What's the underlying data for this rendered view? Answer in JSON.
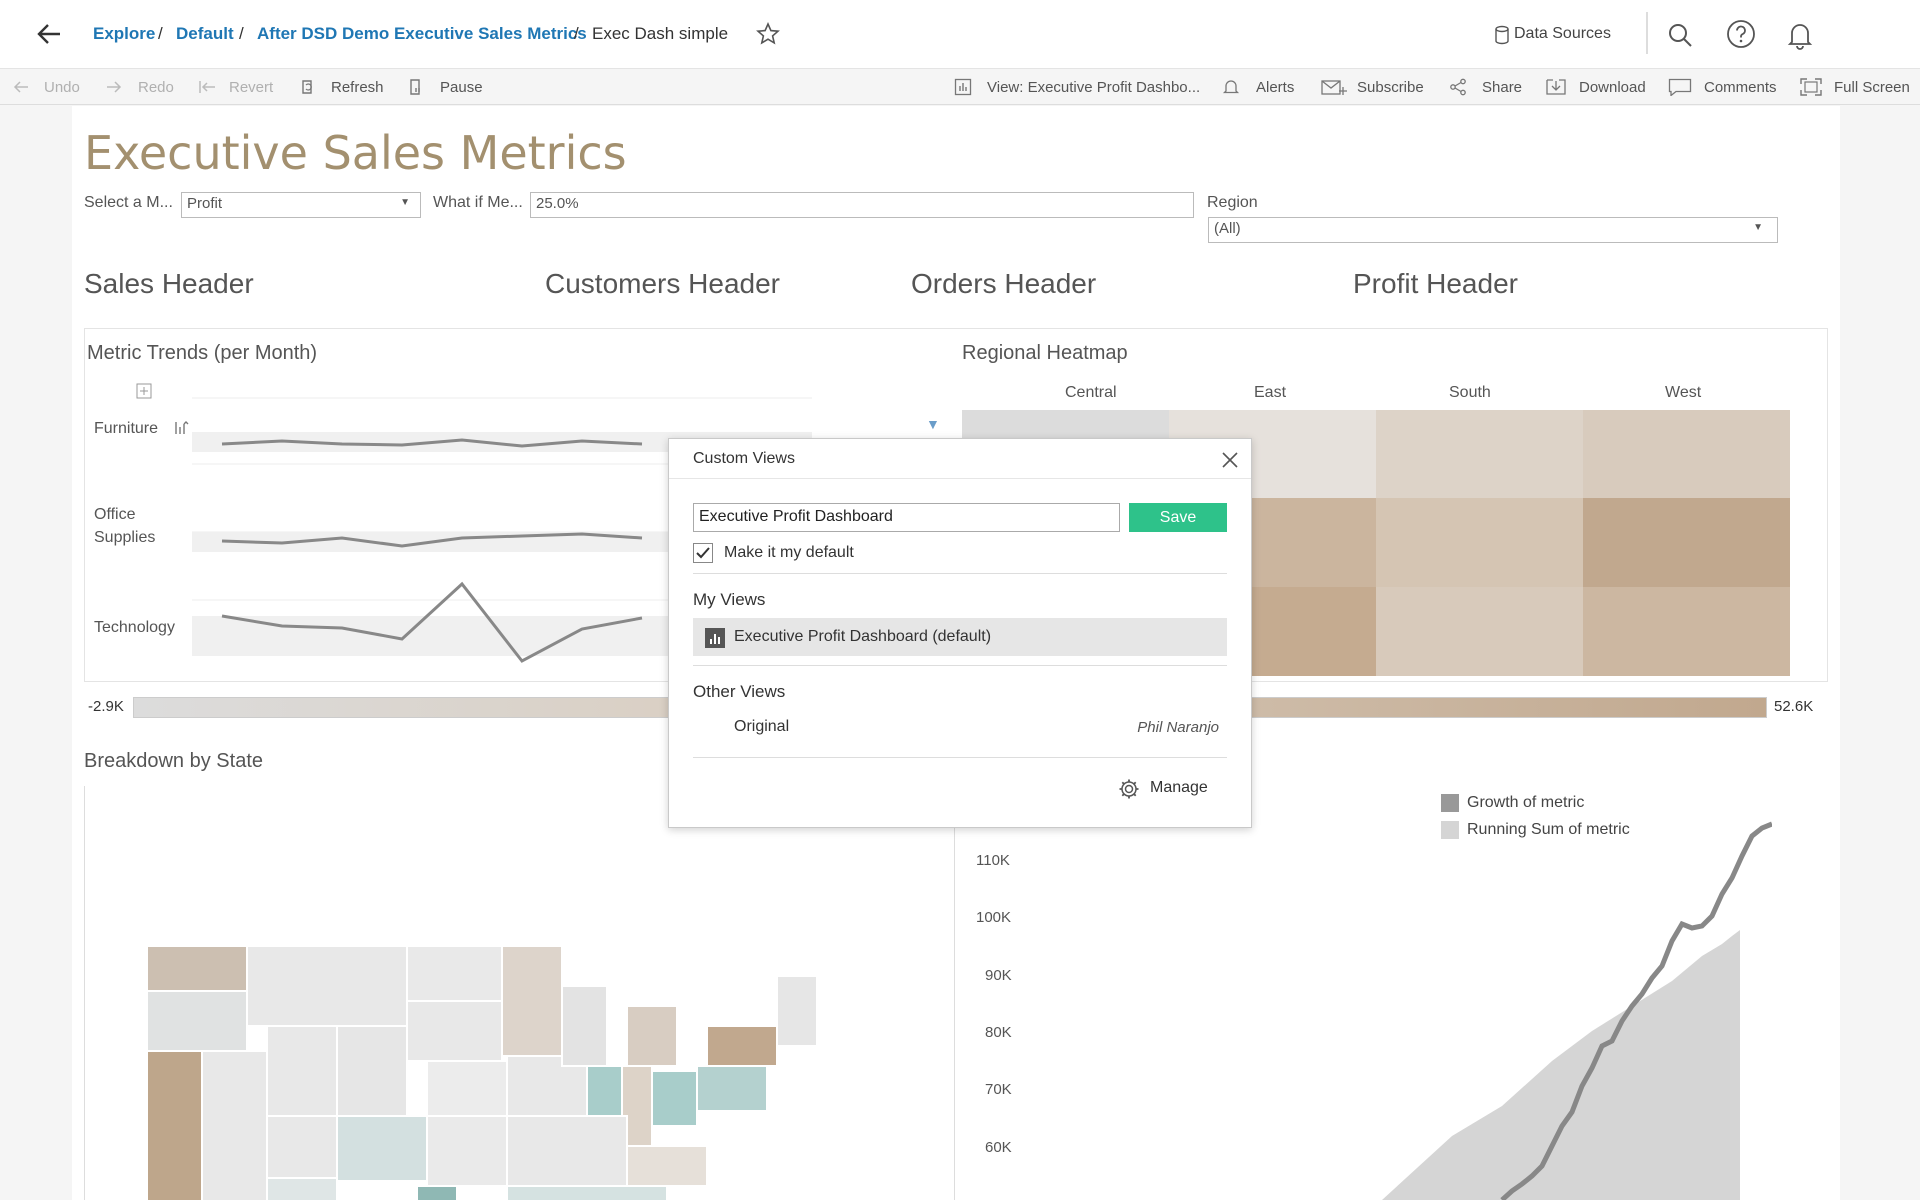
{
  "breadcrumb": {
    "items": [
      "Explore",
      "Default",
      "After DSD Demo Executive Sales Metrics"
    ],
    "current": "Exec Dash simple",
    "separator": "/"
  },
  "topbar": {
    "data_sources": "Data Sources"
  },
  "toolbar": {
    "undo": "Undo",
    "redo": "Redo",
    "revert": "Revert",
    "refresh": "Refresh",
    "pause": "Pause",
    "view": "View: Executive Profit Dashbo...",
    "alerts": "Alerts",
    "subscribe": "Subscribe",
    "share": "Share",
    "download": "Download",
    "comments": "Comments",
    "full_screen": "Full Screen"
  },
  "dashboard": {
    "title": "Executive Sales Metrics",
    "filters": {
      "metric_label": "Select a M...",
      "metric_value": "Profit",
      "whatif_label": "What if Me...",
      "whatif_value": "25.0%",
      "region_label": "Region",
      "region_value": "(All)"
    },
    "headers": [
      "Sales Header",
      "Customers Header",
      "Orders Header",
      "Profit Header"
    ],
    "trends": {
      "title": "Metric Trends (per Month)",
      "rows": [
        "Furniture",
        "Office",
        "Supplies",
        "Technology"
      ]
    },
    "heatmap": {
      "title": "Regional Heatmap",
      "columns": [
        "Central",
        "East",
        "South",
        "West"
      ]
    },
    "legend_range": {
      "min": "-2.9K",
      "max": "52.6K"
    },
    "breakdown": {
      "title": "Breakdown by State"
    },
    "growth": {
      "legend": [
        "Growth of metric",
        "Running Sum of metric"
      ],
      "y_ticks": [
        "110K",
        "100K",
        "90K",
        "80K",
        "70K",
        "60K"
      ]
    }
  },
  "custom_views": {
    "title": "Custom Views",
    "name_value": "Executive Profit Dashboard",
    "save": "Save",
    "default_label": "Make it my default",
    "default_checked": true,
    "my_views_title": "My Views",
    "my_views": [
      "Executive Profit Dashboard (default)"
    ],
    "other_views_title": "Other Views",
    "other_views": [
      {
        "name": "Original",
        "owner": "Phil Naranjo"
      }
    ],
    "manage": "Manage"
  },
  "colors": {
    "link": "#1f77b4",
    "save": "#2ec28a",
    "heat_light": "#ddd3c8",
    "heat_dark": "#c1a88e",
    "teal": "#a8cdca"
  }
}
